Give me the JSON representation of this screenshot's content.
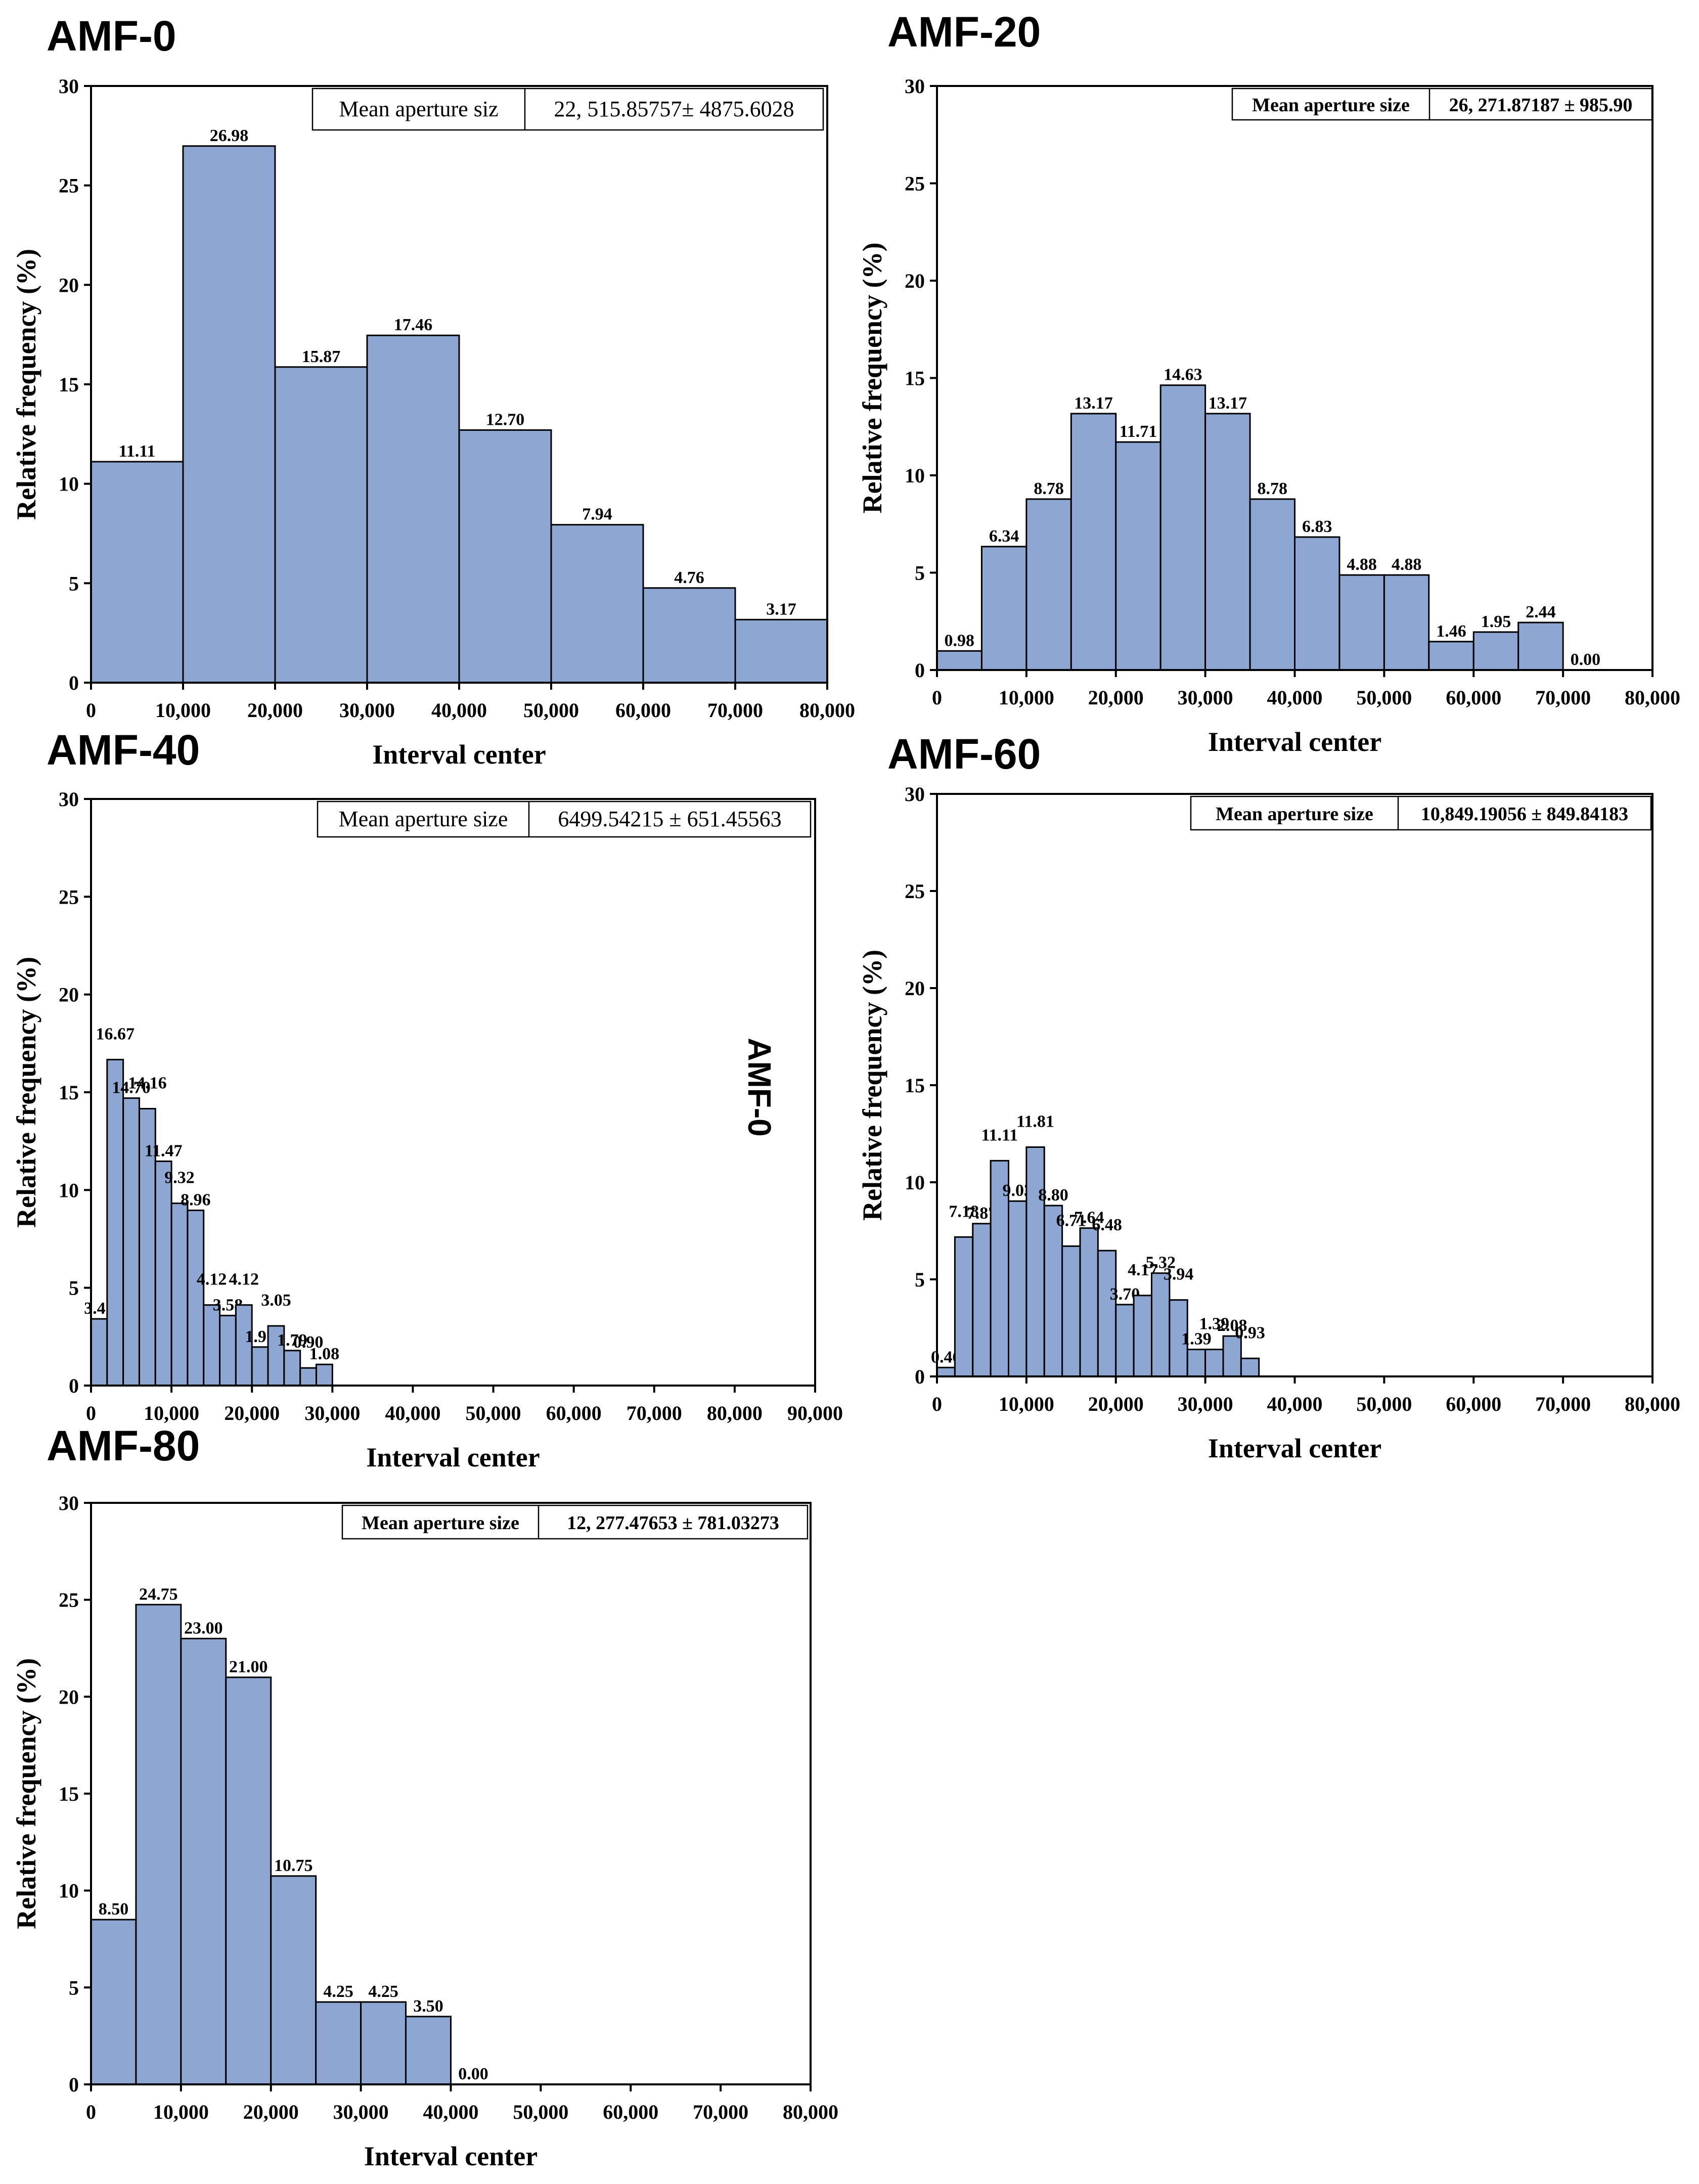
{
  "side_label": "AMF-0",
  "chart_data": [
    {
      "title": "AMF-0",
      "type": "bar",
      "xlabel": "Interval center",
      "ylabel": "Relative frequency (%)",
      "xlim": [
        0,
        80000
      ],
      "ylim": [
        0,
        30
      ],
      "xticks": [
        0,
        10000,
        20000,
        30000,
        40000,
        50000,
        60000,
        70000,
        80000
      ],
      "xtick_labels": [
        "0",
        "10,000",
        "20,000",
        "30,000",
        "40,000",
        "50,000",
        "60,000",
        "70,000",
        "80,000"
      ],
      "yticks": [
        0,
        5,
        10,
        15,
        20,
        25,
        30
      ],
      "ytick_labels": [
        "0",
        "5",
        "10",
        "15",
        "20",
        "25",
        "30"
      ],
      "bin_width": 10000,
      "bin_starts": [
        0,
        10000,
        20000,
        30000,
        40000,
        50000,
        60000,
        70000
      ],
      "values": [
        11.11,
        26.98,
        15.87,
        17.46,
        12.7,
        7.94,
        4.76,
        3.17
      ],
      "labels": [
        "11.11",
        "26.98",
        "15.87",
        "17.46",
        "12.70",
        "7.94",
        "4.76",
        "3.17"
      ],
      "legend": {
        "name": "Mean aperture siz",
        "value": "22, 515.85757± 4875.6028"
      }
    },
    {
      "title": "AMF-20",
      "type": "bar",
      "xlabel": "Interval center",
      "ylabel": "Relative frequency (%)",
      "xlim": [
        0,
        80000
      ],
      "ylim": [
        0,
        30
      ],
      "xticks": [
        0,
        10000,
        20000,
        30000,
        40000,
        50000,
        60000,
        70000,
        80000
      ],
      "xtick_labels": [
        "0",
        "10,000",
        "20,000",
        "30,000",
        "40,000",
        "50,000",
        "60,000",
        "70,000",
        "80,000"
      ],
      "yticks": [
        0,
        5,
        10,
        15,
        20,
        25,
        30
      ],
      "ytick_labels": [
        "0",
        "5",
        "10",
        "15",
        "20",
        "25",
        "30"
      ],
      "bin_width": 5000,
      "bin_starts": [
        0,
        5000,
        10000,
        15000,
        20000,
        25000,
        30000,
        35000,
        40000,
        45000,
        50000,
        55000,
        60000,
        65000,
        70000
      ],
      "values": [
        0.98,
        6.34,
        8.78,
        13.17,
        11.71,
        14.63,
        13.17,
        8.78,
        6.83,
        4.88,
        4.88,
        1.46,
        1.95,
        2.44,
        0.0
      ],
      "labels": [
        "0.98",
        "6.34",
        "8.78",
        "13.17",
        "11.71",
        "14.63",
        "13.17",
        "8.78",
        "6.83",
        "4.88",
        "4.88",
        "1.46",
        "1.95",
        "2.44",
        "0.00"
      ],
      "legend": {
        "name": "Mean aperture size",
        "value": "26, 271.87187 ± 985.90"
      }
    },
    {
      "title": "AMF-40",
      "type": "bar",
      "xlabel": "Interval center",
      "ylabel": "Relative frequency (%)",
      "xlim": [
        0,
        90000
      ],
      "ylim": [
        0,
        30
      ],
      "xticks": [
        0,
        10000,
        20000,
        30000,
        40000,
        50000,
        60000,
        70000,
        80000,
        90000
      ],
      "xtick_labels": [
        "0",
        "10,000",
        "20,000",
        "30,000",
        "40,000",
        "50,000",
        "60,000",
        "70,000",
        "80,000",
        "90,000"
      ],
      "yticks": [
        0,
        5,
        10,
        15,
        20,
        25,
        30
      ],
      "ytick_labels": [
        "0",
        "5",
        "10",
        "15",
        "20",
        "25",
        "30"
      ],
      "bin_width": 2000,
      "bin_starts": [
        0,
        2000,
        4000,
        6000,
        8000,
        10000,
        12000,
        14000,
        16000,
        18000,
        20000,
        22000,
        24000,
        26000,
        28000
      ],
      "values": [
        3.41,
        16.67,
        14.7,
        14.16,
        11.47,
        9.32,
        8.96,
        4.12,
        3.58,
        4.12,
        1.97,
        3.05,
        1.79,
        0.9,
        1.08
      ],
      "labels": [
        "3.41",
        "16.67",
        "14.70",
        "14.16",
        "11.47",
        "9.32",
        "8.96",
        "4.12",
        "3.58",
        "4.12",
        "1.97",
        "3.05",
        "1.79",
        "0.90",
        "1.08"
      ],
      "legend": {
        "name": "Mean aperture size",
        "value": "6499.54215 ± 651.45563"
      }
    },
    {
      "title": "AMF-60",
      "type": "bar",
      "xlabel": "Interval center",
      "ylabel": "Relative frequency (%)",
      "xlim": [
        0,
        80000
      ],
      "ylim": [
        0,
        30
      ],
      "xticks": [
        0,
        10000,
        20000,
        30000,
        40000,
        50000,
        60000,
        70000,
        80000
      ],
      "xtick_labels": [
        "0",
        "10,000",
        "20,000",
        "30,000",
        "40,000",
        "50,000",
        "60,000",
        "70,000",
        "80,000"
      ],
      "yticks": [
        0,
        5,
        10,
        15,
        20,
        25,
        30
      ],
      "ytick_labels": [
        "0",
        "5",
        "10",
        "15",
        "20",
        "25",
        "30"
      ],
      "bin_width": 2000,
      "bin_starts": [
        0,
        2000,
        4000,
        6000,
        8000,
        10000,
        12000,
        14000,
        16000,
        18000,
        20000,
        22000,
        24000,
        26000,
        28000,
        30000,
        32000,
        34000
      ],
      "values": [
        0.46,
        7.18,
        7.87,
        11.11,
        9.03,
        11.81,
        8.8,
        6.71,
        7.64,
        6.48,
        3.7,
        4.17,
        5.32,
        3.94,
        1.39,
        1.39,
        2.08,
        0.93
      ],
      "labels": [
        "0.46",
        "7.18",
        "7.87",
        "11.11",
        "9.03",
        "11.81",
        "8.80",
        "6.71",
        "7.64",
        "6.48",
        "3.70",
        "4.17",
        "5.32",
        "3.94",
        "1.39",
        "1.39",
        "2.08",
        "0.93"
      ],
      "legend": {
        "name": "Mean aperture size",
        "value": "10,849.19056 ± 849.84183"
      }
    },
    {
      "title": "AMF-80",
      "type": "bar",
      "xlabel": "Interval center",
      "ylabel": "Relative frequency (%)",
      "xlim": [
        0,
        80000
      ],
      "ylim": [
        0,
        30
      ],
      "xticks": [
        0,
        10000,
        20000,
        30000,
        40000,
        50000,
        60000,
        70000,
        80000
      ],
      "xtick_labels": [
        "0",
        "10,000",
        "20,000",
        "30,000",
        "40,000",
        "50,000",
        "60,000",
        "70,000",
        "80,000"
      ],
      "yticks": [
        0,
        5,
        10,
        15,
        20,
        25,
        30
      ],
      "ytick_labels": [
        "0",
        "5",
        "10",
        "15",
        "20",
        "25",
        "30"
      ],
      "bin_width": 5000,
      "bin_starts": [
        0,
        5000,
        10000,
        15000,
        20000,
        25000,
        30000,
        35000,
        40000
      ],
      "values": [
        8.5,
        24.75,
        23.0,
        21.0,
        10.75,
        4.25,
        4.25,
        3.5,
        0.0
      ],
      "labels": [
        "8.50",
        "24.75",
        "23.00",
        "21.00",
        "10.75",
        "4.25",
        "4.25",
        "3.50",
        "0.00"
      ],
      "legend": {
        "name": "Mean aperture size",
        "value": "12, 277.47653 ± 781.03273"
      }
    }
  ]
}
